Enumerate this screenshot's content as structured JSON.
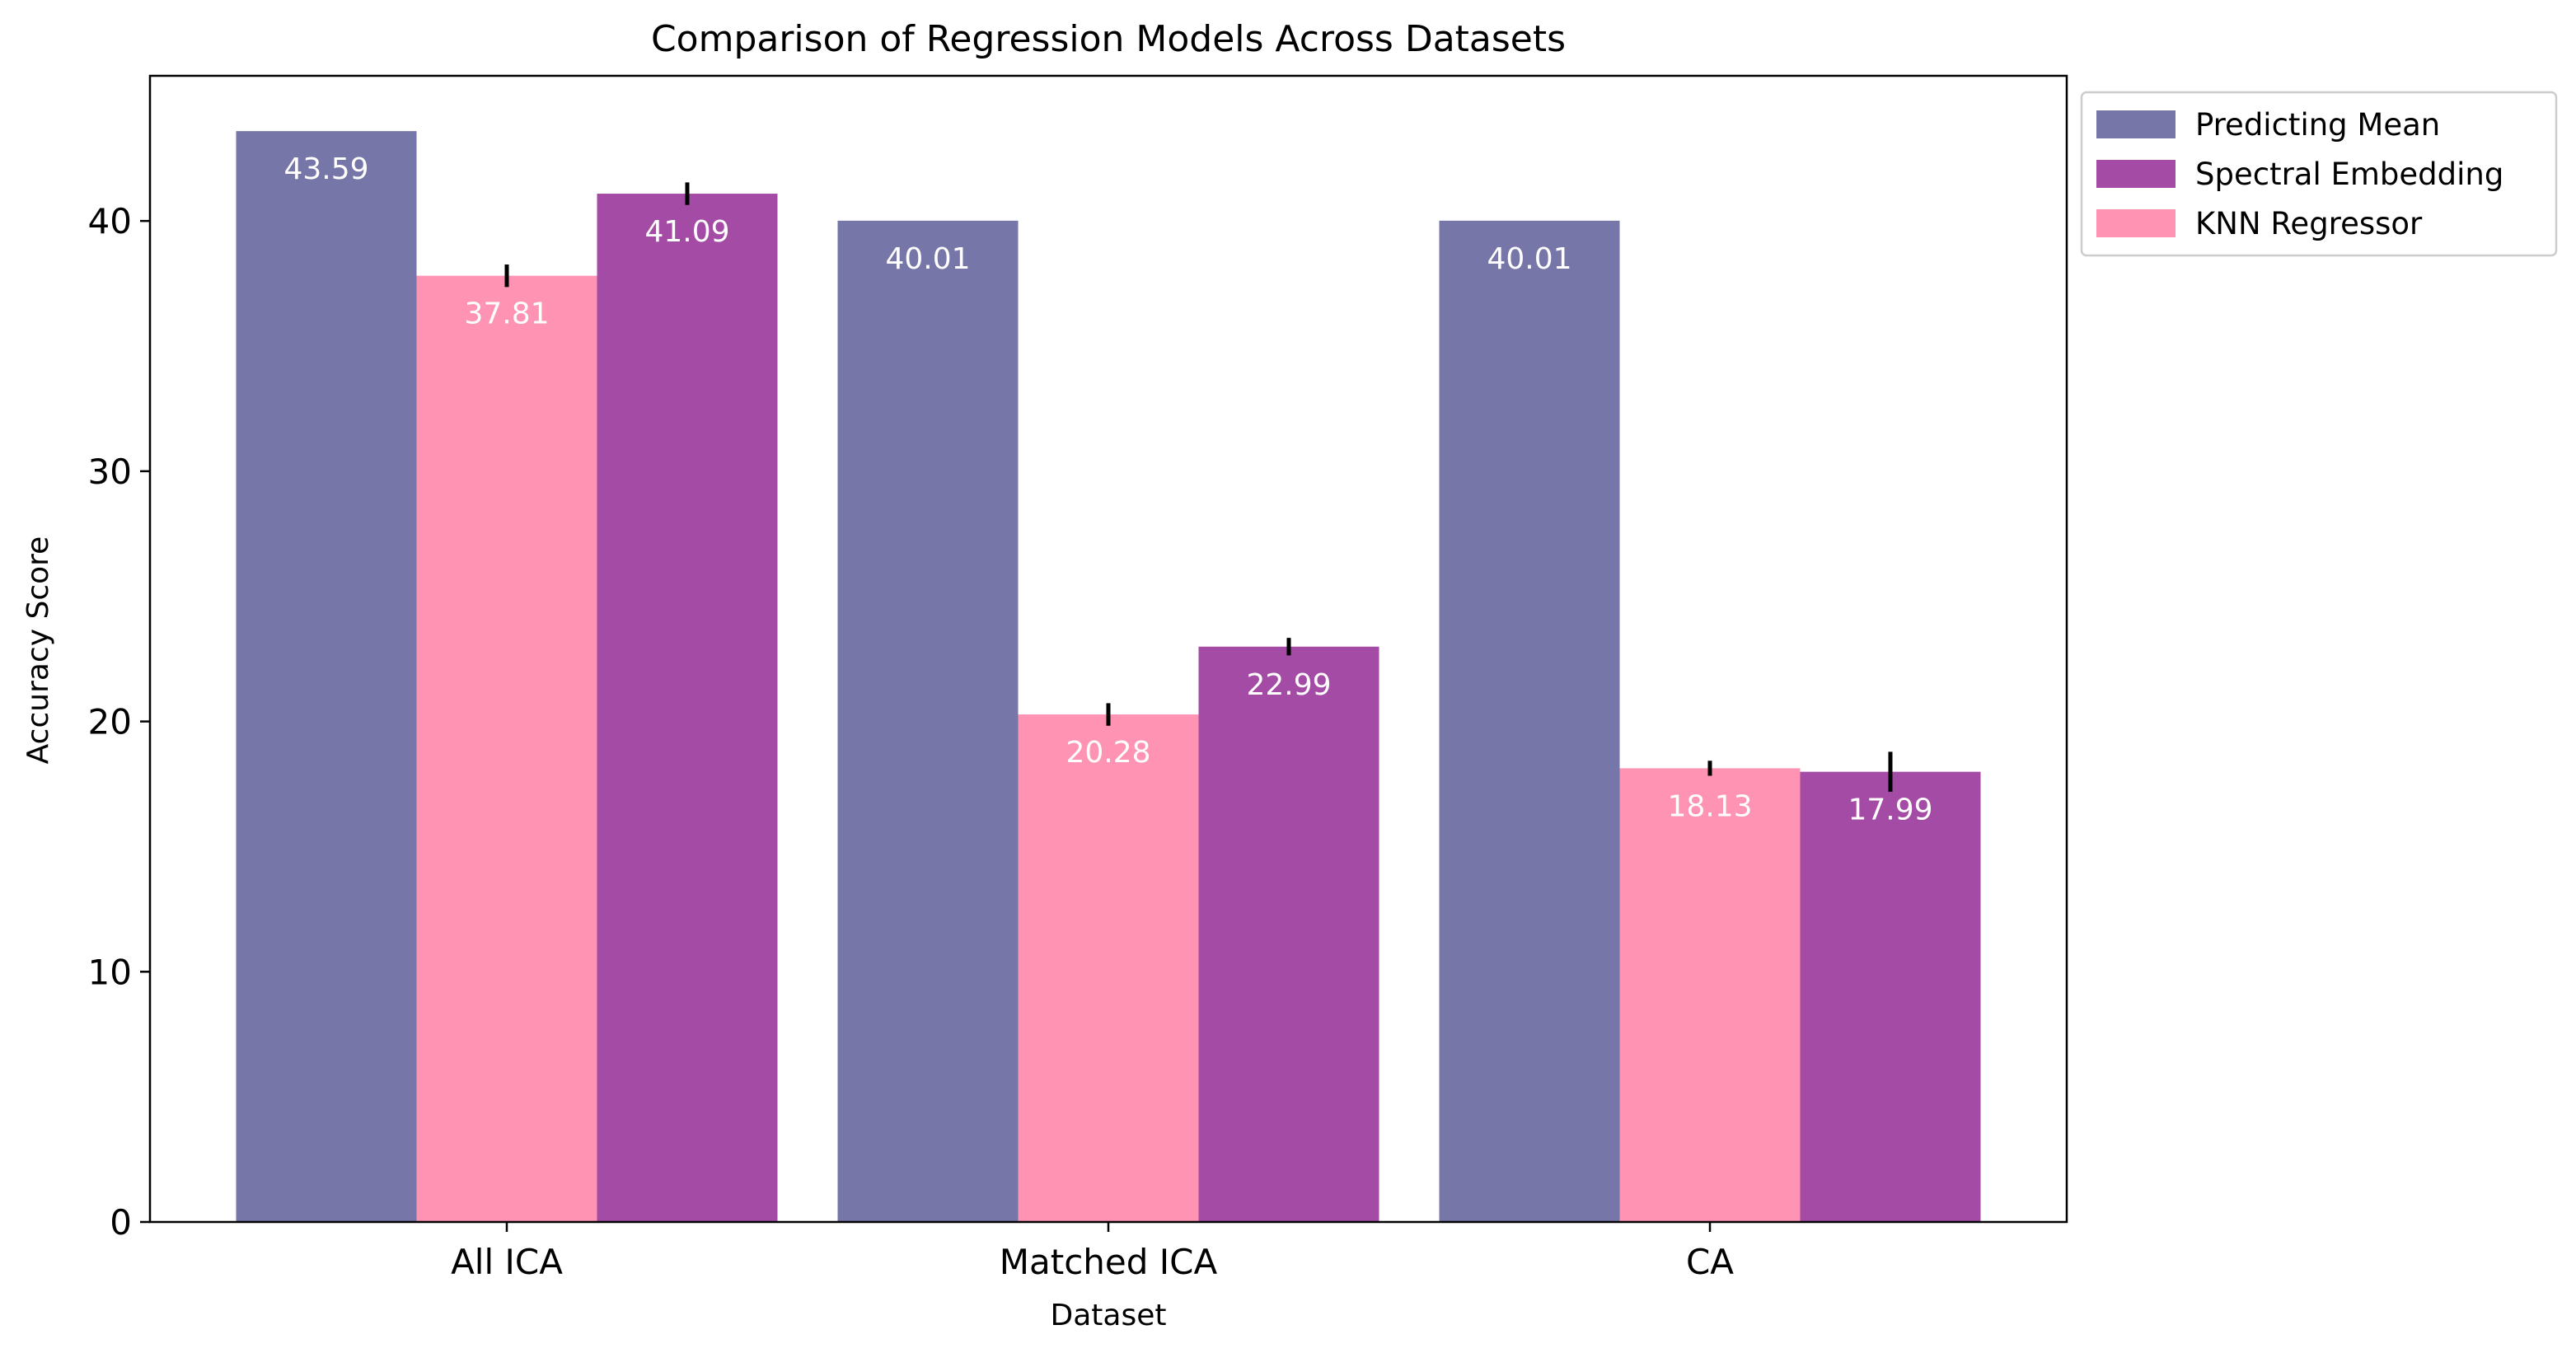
{
  "chart_data": {
    "type": "bar",
    "title": "Comparison of Regression Models Across Datasets",
    "xlabel": "Dataset",
    "ylabel": "Accuracy Score",
    "categories": [
      "All ICA",
      "Matched ICA",
      "CA"
    ],
    "ylim": [
      0,
      45.8
    ],
    "yticks": [
      0,
      10,
      20,
      30,
      40
    ],
    "legend_position": "outside-top-right",
    "bar_order": [
      "Predicting Mean",
      "KNN Regressor",
      "Spectral Embedding"
    ],
    "legend_order": [
      "Predicting Mean",
      "Spectral Embedding",
      "KNN Regressor"
    ],
    "series": [
      {
        "name": "Predicting Mean",
        "color": "#7676a8",
        "values": [
          43.59,
          40.01,
          40.01
        ],
        "labels": [
          "43.59",
          "40.01",
          "40.01"
        ],
        "errors": [
          0,
          0,
          0
        ]
      },
      {
        "name": "Spectral Embedding",
        "color": "#a44ba5",
        "values": [
          41.09,
          22.99,
          17.99
        ],
        "labels": [
          "41.09",
          "22.99",
          "17.99"
        ],
        "errors": [
          0.45,
          0.35,
          0.8
        ]
      },
      {
        "name": "KNN Regressor",
        "color": "#fe93b3",
        "values": [
          37.81,
          20.28,
          18.13
        ],
        "labels": [
          "37.81",
          "20.28",
          "18.13"
        ],
        "errors": [
          0.45,
          0.45,
          0.3
        ]
      }
    ]
  }
}
